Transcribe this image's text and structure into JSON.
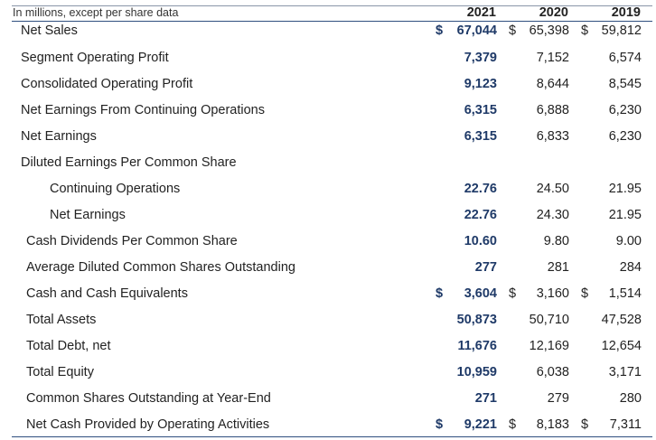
{
  "header": {
    "label": "In millions, except per share data",
    "years": [
      "2021",
      "2020",
      "2019"
    ]
  },
  "rows": [
    {
      "label": "Net Sales",
      "cur": [
        "$",
        "$",
        "$"
      ],
      "v2021": "67,044",
      "v2020": "65,398",
      "v2019": "59,812"
    },
    {
      "label": "Segment Operating Profit",
      "cur": [
        "",
        "",
        ""
      ],
      "v2021": "7,379",
      "v2020": "7,152",
      "v2019": "6,574"
    },
    {
      "label": "Consolidated Operating Profit",
      "cur": [
        "",
        "",
        ""
      ],
      "v2021": "9,123",
      "v2020": "8,644",
      "v2019": "8,545"
    },
    {
      "label": "Net Earnings From Continuing Operations",
      "cur": [
        "",
        "",
        ""
      ],
      "v2021": "6,315",
      "v2020": "6,888",
      "v2019": "6,230"
    },
    {
      "label": "Net Earnings",
      "cur": [
        "",
        "",
        ""
      ],
      "v2021": "6,315",
      "v2020": "6,833",
      "v2019": "6,230"
    },
    {
      "label": "Diluted Earnings Per Common Share",
      "cur": [
        "",
        "",
        ""
      ],
      "v2021": "",
      "v2020": "",
      "v2019": ""
    },
    {
      "label": "Continuing Operations",
      "cur": [
        "",
        "",
        ""
      ],
      "v2021": "22.76",
      "v2020": "24.50",
      "v2019": "21.95"
    },
    {
      "label": "Net Earnings",
      "cur": [
        "",
        "",
        ""
      ],
      "v2021": "22.76",
      "v2020": "24.30",
      "v2019": "21.95"
    },
    {
      "label": "Cash Dividends Per Common Share",
      "cur": [
        "",
        "",
        ""
      ],
      "v2021": "10.60",
      "v2020": "9.80",
      "v2019": "9.00"
    },
    {
      "label": "Average Diluted Common Shares Outstanding",
      "cur": [
        "",
        "",
        ""
      ],
      "v2021": "277",
      "v2020": "281",
      "v2019": "284"
    },
    {
      "label": "Cash and Cash Equivalents",
      "cur": [
        "$",
        "$",
        "$"
      ],
      "v2021": "3,604",
      "v2020": "3,160",
      "v2019": "1,514"
    },
    {
      "label": "Total Assets",
      "cur": [
        "",
        "",
        ""
      ],
      "v2021": "50,873",
      "v2020": "50,710",
      "v2019": "47,528"
    },
    {
      "label": "Total Debt, net",
      "cur": [
        "",
        "",
        ""
      ],
      "v2021": "11,676",
      "v2020": "12,169",
      "v2019": "12,654"
    },
    {
      "label": "Total Equity",
      "cur": [
        "",
        "",
        ""
      ],
      "v2021": "10,959",
      "v2020": "6,038",
      "v2019": "3,171"
    },
    {
      "label": "Common Shares Outstanding at Year-End",
      "cur": [
        "",
        "",
        ""
      ],
      "v2021": "271",
      "v2020": "279",
      "v2019": "280"
    },
    {
      "label": "Net Cash Provided by Operating Activities",
      "cur": [
        "$",
        "$",
        "$"
      ],
      "v2021": "9,221",
      "v2020": "8,183",
      "v2019": "7,311"
    }
  ]
}
